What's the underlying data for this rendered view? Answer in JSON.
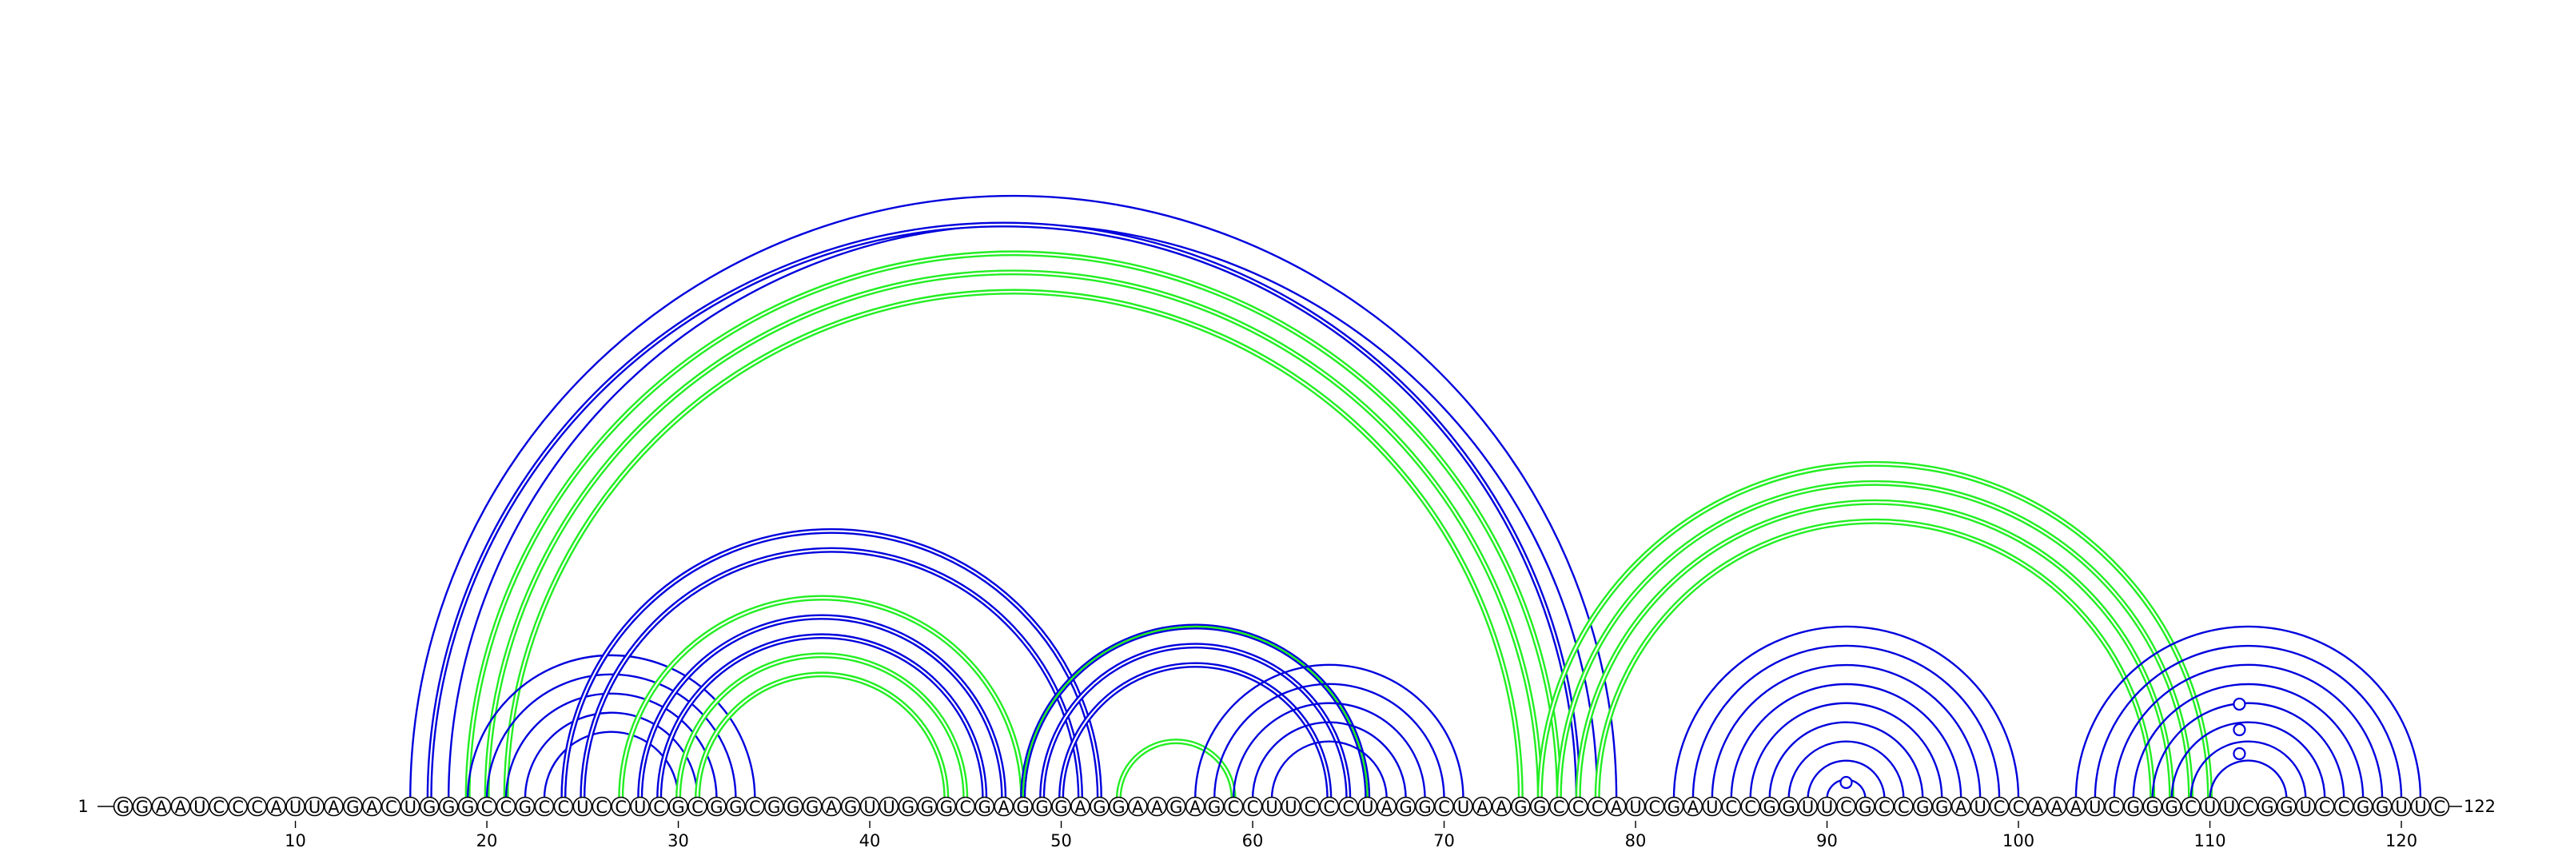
{
  "sequence": "GGAAUCCCAUUAGACUGGGCCGCCUCCUCGCGGCGGGAGUUGGGCGAGGGAGGAAGAGCCUUCCCUAGGCUAAGGCCCAUCGAUCCGGUUCGCCGGAUCCAAAUCGGGCUUCGGUCCGGUUC",
  "start_label": "1",
  "end_label": "122",
  "ticks": [
    10,
    20,
    30,
    40,
    50,
    60,
    70,
    80,
    90,
    100,
    110,
    120
  ],
  "colors": {
    "blue": "#0000dd",
    "green": "#22ee22"
  },
  "arc_groups": [
    {
      "name": "long-outer-blue",
      "color": "blue",
      "double": false,
      "pairs": [
        [
          16,
          79
        ],
        [
          18,
          78
        ]
      ]
    },
    {
      "name": "long-outer-blue-double",
      "color": "blue",
      "double": true,
      "pairs": [
        [
          17,
          77
        ]
      ]
    },
    {
      "name": "long-green",
      "color": "green",
      "double": true,
      "pairs": [
        [
          19,
          76
        ],
        [
          20,
          75
        ],
        [
          21,
          74
        ]
      ]
    },
    {
      "name": "left-small-blue",
      "color": "blue",
      "double": false,
      "pairs": [
        [
          19,
          34
        ],
        [
          20,
          33
        ],
        [
          21,
          32
        ],
        [
          22,
          31
        ],
        [
          23,
          30
        ]
      ]
    },
    {
      "name": "left-mid-blue",
      "color": "blue",
      "double": true,
      "pairs": [
        [
          24,
          52
        ],
        [
          25,
          51
        ]
      ]
    },
    {
      "name": "left-green-outer",
      "color": "green",
      "double": true,
      "pairs": [
        [
          27,
          48
        ]
      ]
    },
    {
      "name": "left-blue-inner",
      "color": "blue",
      "double": true,
      "pairs": [
        [
          28,
          47
        ],
        [
          29,
          46
        ]
      ]
    },
    {
      "name": "left-green-inner",
      "color": "green",
      "double": true,
      "pairs": [
        [
          30,
          45
        ],
        [
          31,
          44
        ]
      ]
    },
    {
      "name": "middle-blue",
      "color": "blue",
      "double": true,
      "pairs": [
        [
          48,
          66
        ],
        [
          49,
          65
        ],
        [
          50,
          64
        ]
      ]
    },
    {
      "name": "middle-green-single",
      "color": "green",
      "double": false,
      "pairs": [
        [
          48,
          66
        ]
      ]
    },
    {
      "name": "middle-small-green",
      "color": "green",
      "double": true,
      "pairs": [
        [
          53,
          59
        ]
      ]
    },
    {
      "name": "right-middle-blue",
      "color": "blue",
      "double": false,
      "pairs": [
        [
          57,
          71
        ],
        [
          58,
          70
        ],
        [
          59,
          69
        ],
        [
          60,
          68
        ],
        [
          61,
          67
        ]
      ]
    },
    {
      "name": "right-long-green",
      "color": "green",
      "double": true,
      "pairs": [
        [
          75,
          110
        ],
        [
          76,
          109
        ],
        [
          77,
          108
        ],
        [
          78,
          107
        ]
      ]
    },
    {
      "name": "hairpin-blue",
      "color": "blue",
      "double": false,
      "pairs": [
        [
          82,
          100
        ],
        [
          83,
          99
        ],
        [
          84,
          98
        ],
        [
          85,
          97
        ],
        [
          86,
          96
        ],
        [
          87,
          95
        ],
        [
          88,
          94
        ],
        [
          89,
          93
        ],
        [
          90,
          92
        ]
      ]
    },
    {
      "name": "far-right-blue",
      "color": "blue",
      "double": false,
      "pairs": [
        [
          103,
          121
        ],
        [
          104,
          120
        ],
        [
          105,
          119
        ],
        [
          106,
          118
        ],
        [
          107,
          117
        ],
        [
          108,
          116
        ],
        [
          109,
          115
        ],
        [
          110,
          114
        ]
      ]
    }
  ],
  "unpaired_markers": [
    91,
    112,
    112,
    112
  ]
}
